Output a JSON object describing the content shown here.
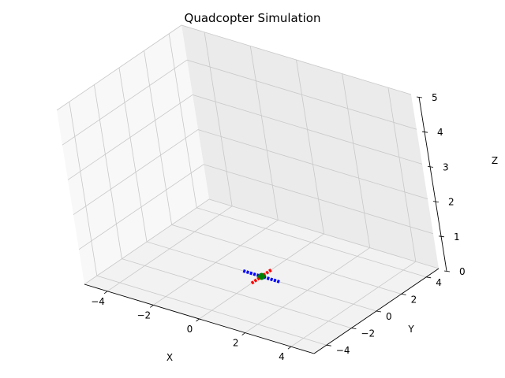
{
  "chart_data": {
    "type": "scatter",
    "projection": "3d",
    "title": "Quadcopter Simulation",
    "xlabel": "X",
    "ylabel": "Y",
    "zlabel": "Z",
    "xlim": [
      -5,
      5
    ],
    "ylim": [
      -5,
      5
    ],
    "zlim": [
      0,
      5
    ],
    "grid": true,
    "x_ticks": [
      "−4",
      "−2",
      "0",
      "2",
      "4"
    ],
    "y_ticks": [
      "−4",
      "−2",
      "0",
      "2",
      "4"
    ],
    "z_ticks": [
      "0",
      "1",
      "2",
      "3",
      "4",
      "5"
    ],
    "series": [
      {
        "color": "#0000ff",
        "x": [
          -0.8,
          0.8
        ],
        "y": [
          0.0,
          0.0
        ],
        "z": [
          0.0,
          0.0
        ]
      },
      {
        "color": "#ff0000",
        "x": [
          0.0,
          0.0
        ],
        "y": [
          -0.8,
          0.8
        ],
        "z": [
          0.0,
          0.0
        ]
      },
      {
        "color": "#008000",
        "x": [
          0.0
        ],
        "y": [
          0.0
        ],
        "z": [
          0.0
        ]
      }
    ]
  }
}
